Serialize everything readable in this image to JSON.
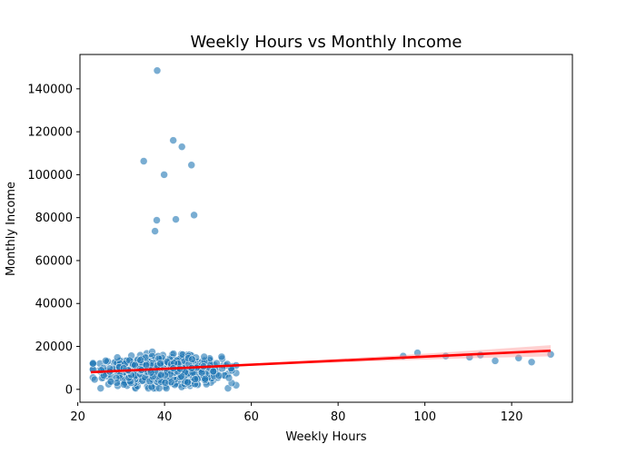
{
  "chart_data": {
    "type": "scatter",
    "title": "Weekly Hours vs Monthly Income",
    "xlabel": "Weekly Hours",
    "ylabel": "Monthly Income",
    "xlim": [
      20.5,
      134
    ],
    "ylim": [
      -6000,
      156000
    ],
    "xticks": [
      20,
      40,
      60,
      80,
      100,
      120
    ],
    "yticks": [
      0,
      20000,
      40000,
      60000,
      80000,
      100000,
      120000,
      140000
    ],
    "grid": false,
    "legend": "none",
    "colors": {
      "points": "#1f77b4",
      "regression_line": "#ff0000",
      "confidence_band": "#ff9999"
    },
    "point_alpha": 0.6,
    "regression_line": {
      "x": [
        23,
        129
      ],
      "y": [
        8000,
        18000
      ]
    },
    "outliers_high_income": [
      {
        "x": 38.3,
        "y": 148500
      },
      {
        "x": 42.0,
        "y": 116000
      },
      {
        "x": 44.0,
        "y": 113000
      },
      {
        "x": 35.2,
        "y": 106300
      },
      {
        "x": 46.2,
        "y": 104500
      },
      {
        "x": 39.9,
        "y": 100000
      },
      {
        "x": 46.8,
        "y": 81200
      },
      {
        "x": 38.2,
        "y": 78800
      },
      {
        "x": 42.6,
        "y": 79200
      },
      {
        "x": 37.8,
        "y": 73700
      }
    ],
    "outliers_high_hours": [
      {
        "x": 95.0,
        "y": 15500
      },
      {
        "x": 98.3,
        "y": 17000
      },
      {
        "x": 104.8,
        "y": 15500
      },
      {
        "x": 110.3,
        "y": 15000
      },
      {
        "x": 112.8,
        "y": 16000
      },
      {
        "x": 116.2,
        "y": 13300
      },
      {
        "x": 121.6,
        "y": 14600
      },
      {
        "x": 124.6,
        "y": 12700
      },
      {
        "x": 129.0,
        "y": 16300
      }
    ],
    "main_cluster": {
      "count": 900,
      "x_mean": 40,
      "x_range": [
        23.5,
        56.5
      ],
      "y_mean": 8500,
      "y_range": [
        500,
        17500
      ]
    }
  }
}
